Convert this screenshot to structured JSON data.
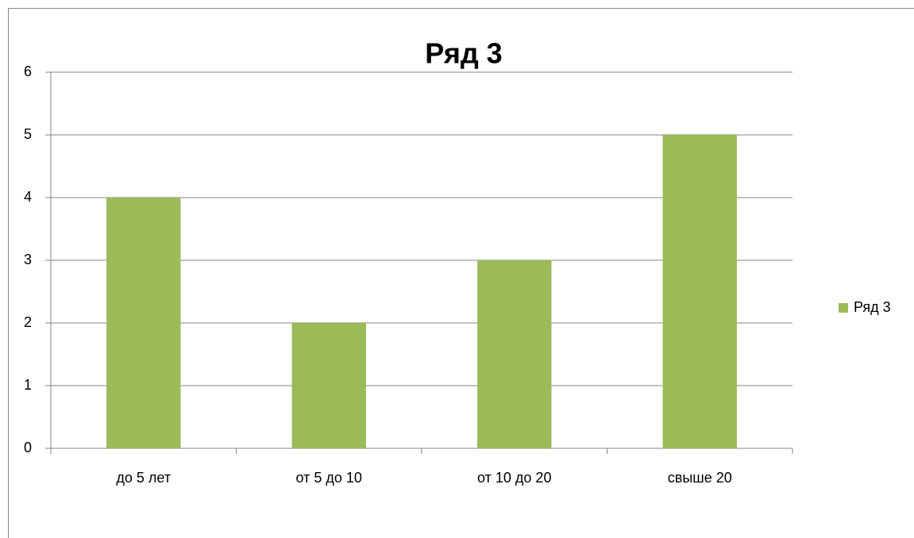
{
  "chart_data": {
    "type": "bar",
    "title": "Ряд 3",
    "categories": [
      "до 5 лет",
      "от 5 до 10",
      "от 10 до 20",
      "свыше 20"
    ],
    "series": [
      {
        "name": "Ряд 3",
        "color": "#9bbb59",
        "values": [
          4,
          2,
          3,
          5
        ]
      }
    ],
    "ylim": [
      0,
      6
    ],
    "yticks": [
      0,
      1,
      2,
      3,
      4,
      5,
      6
    ],
    "grid": true,
    "legend": "right"
  }
}
